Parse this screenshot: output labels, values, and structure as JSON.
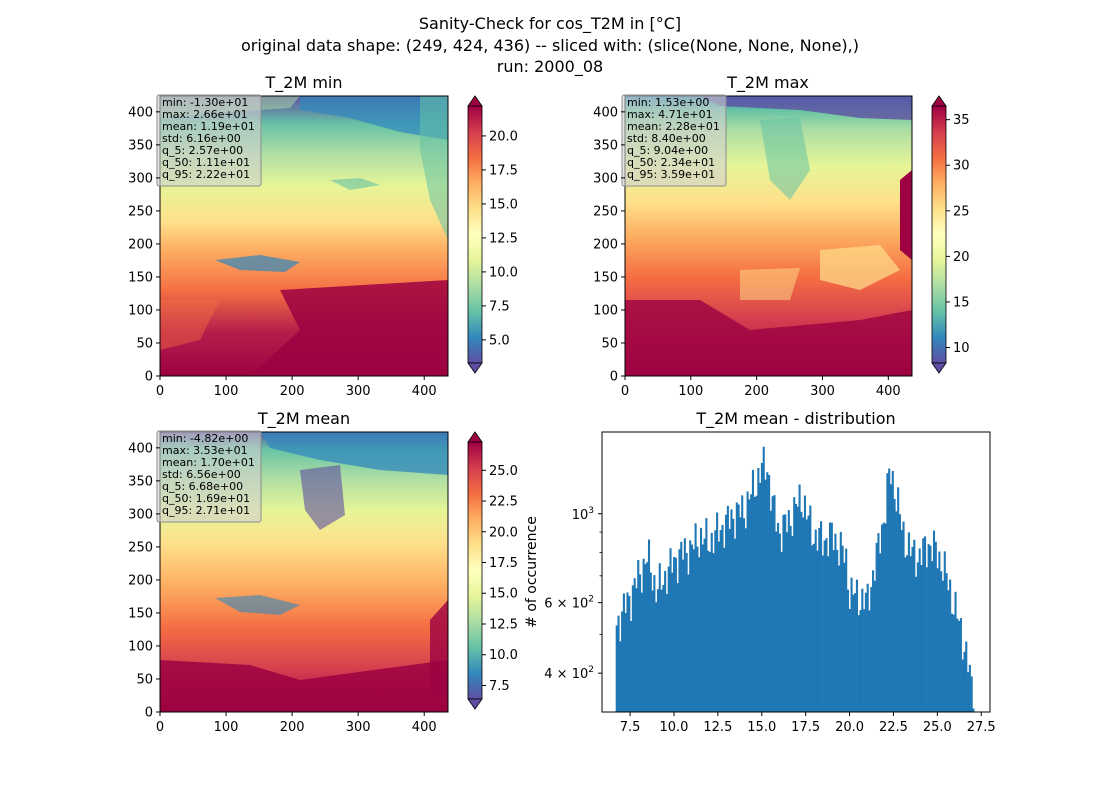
{
  "title_lines": [
    "Sanity-Check for cos_T2M in [°C]",
    "original data shape: (249, 424, 436) -- sliced with: (slice(None, None, None),)",
    "run: 2000_08"
  ],
  "chart_data": [
    {
      "type": "heatmap",
      "title": "T_2M min",
      "xlim": [
        0,
        436
      ],
      "ylim": [
        0,
        424
      ],
      "xticks": [
        0,
        100,
        200,
        300,
        400
      ],
      "yticks": [
        0,
        50,
        100,
        150,
        200,
        250,
        300,
        350,
        400
      ],
      "colormap": "Spectral_r",
      "color_range": [
        3.3,
        22.2
      ],
      "colorbar_ticks": [
        "5.0",
        "7.5",
        "10.0",
        "12.5",
        "15.0",
        "17.5",
        "20.0"
      ],
      "colorbar_tick_values": [
        5.0,
        7.5,
        10.0,
        12.5,
        15.0,
        17.5,
        20.0
      ],
      "stats": [
        "min: -1.30e+01",
        "max: 2.66e+01",
        "mean: 1.19e+01",
        "std: 6.16e+00",
        "q_5: 2.57e+00",
        "q_50: 1.11e+01",
        "q_95: 2.22e+01"
      ]
    },
    {
      "type": "heatmap",
      "title": "T_2M max",
      "xlim": [
        0,
        436
      ],
      "ylim": [
        0,
        424
      ],
      "xticks": [
        0,
        100,
        200,
        300,
        400
      ],
      "yticks": [
        0,
        50,
        100,
        150,
        200,
        250,
        300,
        350,
        400
      ],
      "colormap": "Spectral_r",
      "color_range": [
        8.3,
        36.5
      ],
      "colorbar_ticks": [
        "10",
        "15",
        "20",
        "25",
        "30",
        "35"
      ],
      "colorbar_tick_values": [
        10,
        15,
        20,
        25,
        30,
        35
      ],
      "stats": [
        "min: 1.53e+00",
        "max: 4.71e+01",
        "mean: 2.28e+01",
        "std: 8.40e+00",
        "q_5: 9.04e+00",
        "q_50: 2.34e+01",
        "q_95: 3.59e+01"
      ]
    },
    {
      "type": "heatmap",
      "title": "T_2M mean",
      "xlim": [
        0,
        436
      ],
      "ylim": [
        0,
        424
      ],
      "xticks": [
        0,
        100,
        200,
        300,
        400
      ],
      "yticks": [
        0,
        50,
        100,
        150,
        200,
        250,
        300,
        350,
        400
      ],
      "colormap": "Spectral_r",
      "color_range": [
        6.4,
        27.3
      ],
      "colorbar_ticks": [
        "7.5",
        "10.0",
        "12.5",
        "15.0",
        "17.5",
        "20.0",
        "22.5",
        "25.0"
      ],
      "colorbar_tick_values": [
        7.5,
        10.0,
        12.5,
        15.0,
        17.5,
        20.0,
        22.5,
        25.0
      ],
      "stats": [
        "min: -4.82e+00",
        "max: 3.53e+01",
        "mean: 1.70e+01",
        "std: 6.56e+00",
        "q_5: 6.68e+00",
        "q_50: 1.69e+01",
        "q_95: 2.71e+01"
      ]
    },
    {
      "type": "bar",
      "title": "T_2M mean - distribution",
      "ylabel": "# of occurrence",
      "y_scale": "log",
      "xlim": [
        5.9,
        28.0
      ],
      "ylim": [
        320,
        1600
      ],
      "xticks": [
        7.5,
        10.0,
        12.5,
        15.0,
        17.5,
        20.0,
        22.5,
        25.0,
        27.5
      ],
      "xtick_labels": [
        "7.5",
        "10.0",
        "12.5",
        "15.0",
        "17.5",
        "20.0",
        "22.5",
        "25.0",
        "27.5"
      ],
      "ytick_labels": [
        {
          "base": "4 × 10",
          "exp": "2",
          "value": 400
        },
        {
          "base": "6 × 10",
          "exp": "2",
          "value": 600
        },
        {
          "base": "10",
          "exp": "3",
          "value": 1000
        }
      ],
      "bin_range": [
        6.68,
        27.1
      ],
      "bin_count": 200,
      "color": "#1f77b4",
      "profile_anchors": [
        [
          6.68,
          520
        ],
        [
          7.0,
          560
        ],
        [
          7.5,
          620
        ],
        [
          8.0,
          700
        ],
        [
          8.5,
          780
        ],
        [
          9.0,
          640
        ],
        [
          9.5,
          700
        ],
        [
          10.0,
          760
        ],
        [
          10.5,
          800
        ],
        [
          11.0,
          820
        ],
        [
          11.5,
          880
        ],
        [
          12.0,
          850
        ],
        [
          12.5,
          900
        ],
        [
          13.0,
          950
        ],
        [
          13.5,
          1000
        ],
        [
          14.0,
          1020
        ],
        [
          14.5,
          1150
        ],
        [
          15.0,
          1300
        ],
        [
          15.3,
          1320
        ],
        [
          15.6,
          1050
        ],
        [
          16.0,
          900
        ],
        [
          16.5,
          950
        ],
        [
          17.0,
          1050
        ],
        [
          17.3,
          1100
        ],
        [
          17.6,
          980
        ],
        [
          18.0,
          880
        ],
        [
          18.5,
          860
        ],
        [
          19.0,
          880
        ],
        [
          19.5,
          820
        ],
        [
          19.8,
          760
        ],
        [
          20.0,
          640
        ],
        [
          20.5,
          620
        ],
        [
          21.0,
          600
        ],
        [
          21.5,
          760
        ],
        [
          22.0,
          1000
        ],
        [
          22.3,
          1280
        ],
        [
          22.6,
          1150
        ],
        [
          23.0,
          900
        ],
        [
          23.5,
          800
        ],
        [
          24.0,
          780
        ],
        [
          24.5,
          840
        ],
        [
          25.0,
          800
        ],
        [
          25.5,
          700
        ],
        [
          26.0,
          580
        ],
        [
          26.5,
          480
        ],
        [
          27.1,
          330
        ]
      ]
    }
  ]
}
